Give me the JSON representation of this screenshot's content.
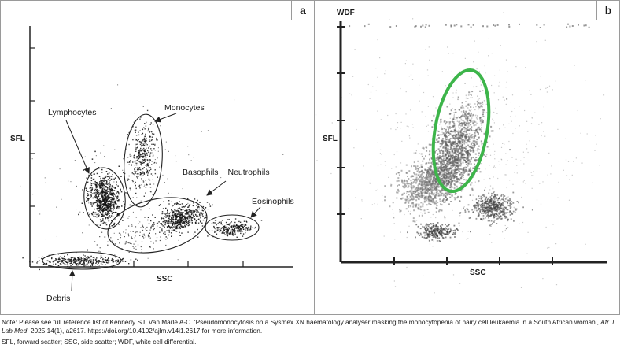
{
  "panel_a": {
    "letter": "a",
    "y_axis_label": "SFL",
    "x_axis_label": "SSC",
    "populations": [
      "Lymphocytes",
      "Monocytes",
      "Basophils + Neutrophils",
      "Eosinophils",
      "Debris"
    ]
  },
  "panel_b": {
    "letter": "b",
    "title": "WDF",
    "y_axis_label": "SFL",
    "x_axis_label": "SSC",
    "highlight_color": "#3db54a"
  },
  "footer": {
    "note_prefix": "Note: Please see full reference list of Kennedy SJ, Van Marle A-C. ‘Pseudomonocytosis on a Sysmex XN haematology analyser masking the monocytopenia of hairy cell leukaemia in a South African woman’,",
    "journal": "Afr J Lab Med",
    "note_suffix": ". 2025;14(1), a2617. https://doi.org/10.4102/ajlm.v14i1.2617 for more information.",
    "abbreviations": "SFL, forward scatter; SSC, side scatter; WDF, white cell differential."
  }
}
